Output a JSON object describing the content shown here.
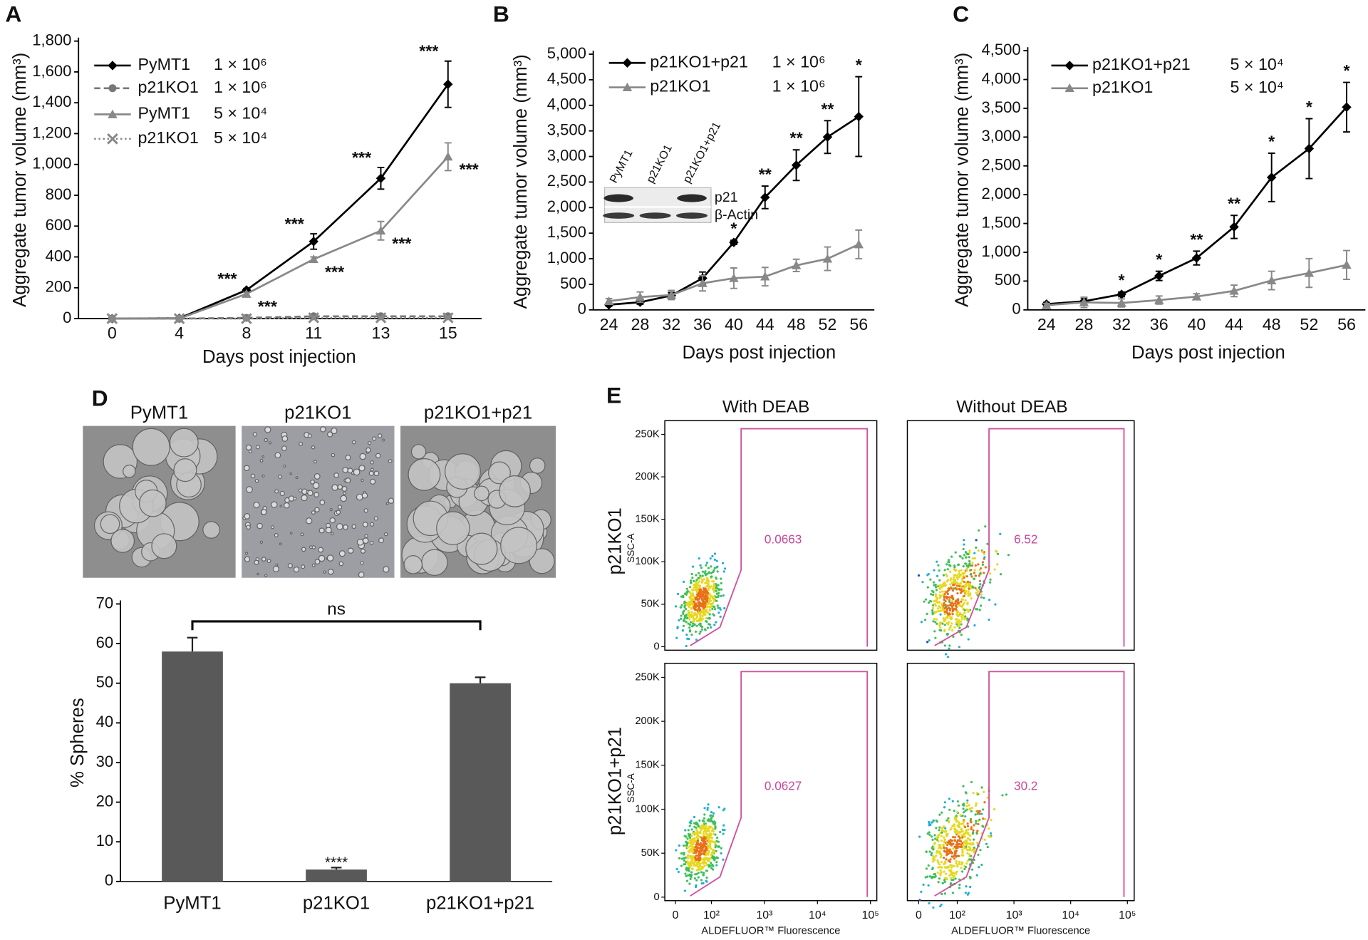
{
  "chart_data": [
    {
      "type": "line",
      "panel": "A",
      "y_axis_label": "Aggregate tumor volume (mm³)",
      "x_axis_label": "Days post injection",
      "categories": [
        "0",
        "4",
        "8",
        "11",
        "13",
        "15"
      ],
      "ylim": [
        0,
        1800
      ],
      "yticks": [
        0,
        200,
        400,
        600,
        800,
        {
          "value": 1000,
          "label": "1,000"
        },
        {
          "value": 1200,
          "label": "1,200"
        },
        {
          "value": 1400,
          "label": "1,400"
        },
        {
          "value": 1600,
          "label": "1,600"
        },
        {
          "value": 1800,
          "label": "1,800"
        }
      ],
      "series": [
        {
          "name": "PyMT1",
          "dose": "1 × 10⁶",
          "color": "#000000",
          "marker": "diamond",
          "line_style": "solid",
          "values": [
            0,
            2,
            185,
            500,
            910,
            1520
          ],
          "errors": [
            0,
            0,
            10,
            50,
            70,
            150
          ],
          "significance": [
            null,
            null,
            "***",
            "***",
            "***",
            "***"
          ]
        },
        {
          "name": "p21KO1",
          "dose": "1 × 10⁶",
          "color": "#777777",
          "marker": "circle",
          "line_style": "dashed",
          "values": [
            0,
            0,
            5,
            15,
            15,
            15
          ]
        },
        {
          "name": "PyMT1",
          "dose": "5 × 10⁴",
          "color": "#888888",
          "marker": "triangle",
          "line_style": "solid",
          "values": [
            0,
            0,
            160,
            385,
            570,
            1050
          ],
          "errors": [
            0,
            0,
            10,
            15,
            60,
            90
          ],
          "significance": [
            null,
            null,
            "***",
            "***",
            "***",
            "***"
          ]
        },
        {
          "name": "p21KO1",
          "dose": "5 × 10⁴",
          "color": "#888888",
          "marker": "x",
          "line_style": "dotted",
          "values": [
            0,
            0,
            0,
            5,
            5,
            5
          ]
        }
      ]
    },
    {
      "type": "line",
      "panel": "B",
      "y_axis_label": "Aggregate tumor volume (mm³)",
      "x_axis_label": "Days post injection",
      "categories": [
        "24",
        "28",
        "32",
        "36",
        "40",
        "44",
        "48",
        "52",
        "56"
      ],
      "ylim": [
        0,
        5000
      ],
      "yticks": [
        0,
        500,
        {
          "value": 1000,
          "label": "1,000"
        },
        {
          "value": 1500,
          "label": "1,500"
        },
        {
          "value": 2000,
          "label": "2,000"
        },
        {
          "value": 2500,
          "label": "2,500"
        },
        {
          "value": 3000,
          "label": "3,000"
        },
        {
          "value": 3500,
          "label": "3,500"
        },
        {
          "value": 4000,
          "label": "4,000"
        },
        {
          "value": 4500,
          "label": "4,500"
        },
        {
          "value": 5000,
          "label": "5,000"
        }
      ],
      "series": [
        {
          "name": "p21KO1+p21",
          "dose": "1 × 10⁶",
          "color": "#000000",
          "marker": "diamond",
          "line_style": "solid",
          "values": [
            100,
            150,
            280,
            620,
            1320,
            2200,
            2830,
            3380,
            3780
          ],
          "errors": [
            30,
            40,
            60,
            120,
            40,
            220,
            300,
            320,
            780
          ],
          "significance": [
            null,
            null,
            null,
            null,
            "*",
            "**",
            "**",
            "**",
            "*"
          ]
        },
        {
          "name": "p21KO1",
          "dose": "1 × 10⁶",
          "color": "#888888",
          "marker": "triangle",
          "line_style": "solid",
          "values": [
            170,
            250,
            290,
            520,
            620,
            650,
            870,
            1000,
            1280
          ],
          "errors": [
            50,
            100,
            90,
            150,
            200,
            180,
            120,
            230,
            280
          ]
        }
      ],
      "inset": {
        "lanes": [
          "PyMT1",
          "p21KO1",
          "p21KO1+p21"
        ],
        "bands": [
          "p21",
          "β-Actin"
        ]
      }
    },
    {
      "type": "line",
      "panel": "C",
      "y_axis_label": "Aggregate tumor volume (mm³)",
      "x_axis_label": "Days post injection",
      "categories": [
        "24",
        "28",
        "32",
        "36",
        "40",
        "44",
        "48",
        "52",
        "56"
      ],
      "ylim": [
        0,
        4500
      ],
      "yticks": [
        0,
        500,
        {
          "value": 1000,
          "label": "1,000"
        },
        {
          "value": 1500,
          "label": "1,500"
        },
        {
          "value": 2000,
          "label": "2,000"
        },
        {
          "value": 2500,
          "label": "2,500"
        },
        {
          "value": 3000,
          "label": "3,000"
        },
        {
          "value": 3500,
          "label": "3,500"
        },
        {
          "value": 4000,
          "label": "4,000"
        },
        {
          "value": 4500,
          "label": "4,500"
        }
      ],
      "series": [
        {
          "name": "p21KO1+p21",
          "dose": "5 × 10⁴",
          "color": "#000000",
          "marker": "diamond",
          "line_style": "solid",
          "values": [
            100,
            150,
            270,
            590,
            900,
            1440,
            2300,
            2800,
            3520
          ],
          "errors": [
            30,
            60,
            40,
            80,
            120,
            200,
            420,
            520,
            430
          ],
          "significance": [
            null,
            null,
            "*",
            "*",
            "**",
            "**",
            "*",
            "*",
            "*"
          ]
        },
        {
          "name": "p21KO1",
          "dose": "5 × 10⁴",
          "color": "#888888",
          "marker": "triangle",
          "line_style": "solid",
          "values": [
            80,
            130,
            120,
            170,
            230,
            330,
            510,
            640,
            780
          ],
          "errors": [
            30,
            90,
            70,
            70,
            50,
            100,
            160,
            250,
            250
          ]
        }
      ]
    },
    {
      "type": "bar",
      "panel": "D",
      "y_axis_label": "% Spheres",
      "categories": [
        "PyMT1",
        "p21KO1",
        "p21KO1+p21"
      ],
      "values": [
        58,
        3,
        50
      ],
      "errors": [
        3.5,
        0.5,
        1.5
      ],
      "color": "#595959",
      "significance": [
        null,
        "****",
        null
      ],
      "bracket_label": "ns",
      "ylim": [
        0,
        70
      ],
      "yticks": [
        0,
        10,
        20,
        30,
        40,
        50,
        60,
        70
      ]
    }
  ],
  "panel_e": {
    "letter": "E",
    "columns": [
      "With DEAB",
      "Without DEAB"
    ],
    "rows": [
      "p21KO1",
      "p21KO1+p21"
    ],
    "y_axis_label": "SSC-A",
    "x_axis_label": "ALDEFLUOR™ Fluorescence",
    "ylim": [
      0,
      262000
    ],
    "yticks": [
      0,
      {
        "value": 50000,
        "label": "50K"
      },
      {
        "value": 100000,
        "label": "100K"
      },
      {
        "value": 150000,
        "label": "150K"
      },
      {
        "value": 200000,
        "label": "200K"
      },
      {
        "value": 250000,
        "label": "250K"
      }
    ],
    "xticks": [
      0,
      {
        "value": 100,
        "label": "10²"
      },
      {
        "value": 1000,
        "label": "10³"
      },
      {
        "value": 10000,
        "label": "10⁴"
      },
      {
        "value": 100000,
        "label": "10⁵"
      }
    ],
    "gates": [
      [
        "0.0663",
        "6.52"
      ],
      [
        "0.0627",
        "30.2"
      ]
    ]
  }
}
